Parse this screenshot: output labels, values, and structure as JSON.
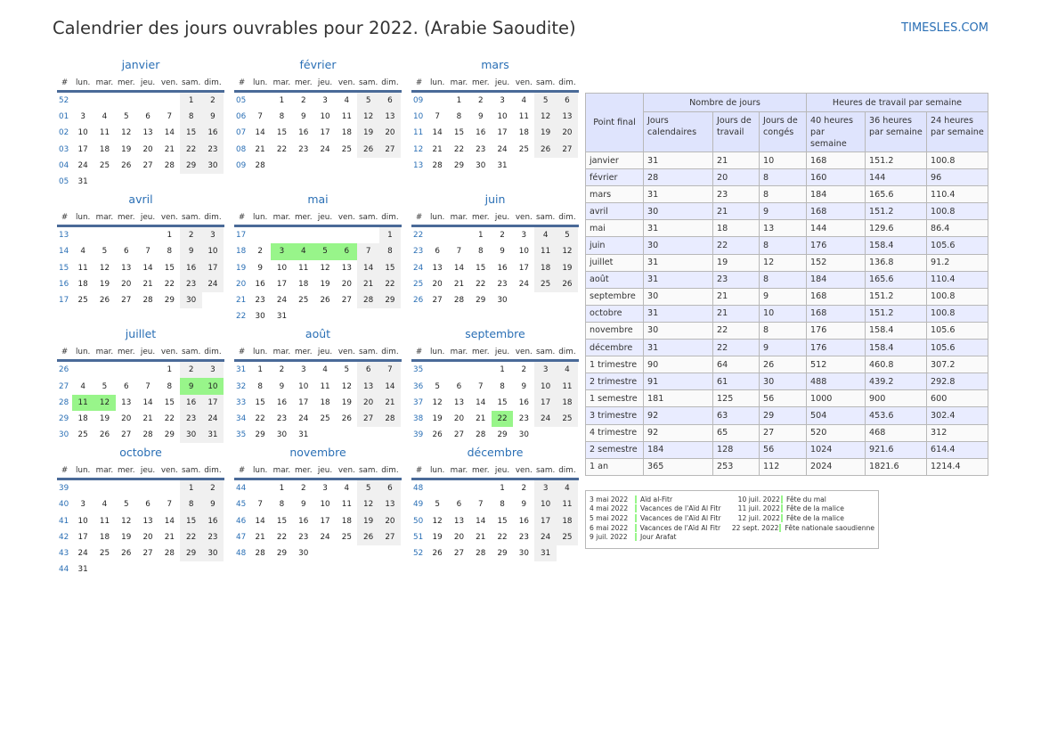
{
  "title": "Calendrier des jours ouvrables pour 2022. (Arabie Saoudite)",
  "brand": "TIMESLES.COM",
  "colors": {
    "holiday": "#98f58a",
    "weekend": "#f0f0f0",
    "accent": "#2a6fb5",
    "header_line": "#4a6a98"
  },
  "weekday_headers": [
    "#",
    "lun.",
    "mar.",
    "mer.",
    "jeu.",
    "ven.",
    "sam.",
    "dim."
  ],
  "months": [
    {
      "name": "janvier",
      "highlight": [],
      "weeks": [
        [
          "52",
          "",
          "",
          "",
          "",
          "",
          "1",
          "2"
        ],
        [
          "01",
          "3",
          "4",
          "5",
          "6",
          "7",
          "8",
          "9"
        ],
        [
          "02",
          "10",
          "11",
          "12",
          "13",
          "14",
          "15",
          "16"
        ],
        [
          "03",
          "17",
          "18",
          "19",
          "20",
          "21",
          "22",
          "23"
        ],
        [
          "04",
          "24",
          "25",
          "26",
          "27",
          "28",
          "29",
          "30"
        ],
        [
          "05",
          "31",
          "",
          "",
          "",
          "",
          "",
          ""
        ]
      ]
    },
    {
      "name": "février",
      "highlight": [],
      "weeks": [
        [
          "05",
          "",
          "1",
          "2",
          "3",
          "4",
          "5",
          "6"
        ],
        [
          "06",
          "7",
          "8",
          "9",
          "10",
          "11",
          "12",
          "13"
        ],
        [
          "07",
          "14",
          "15",
          "16",
          "17",
          "18",
          "19",
          "20"
        ],
        [
          "08",
          "21",
          "22",
          "23",
          "24",
          "25",
          "26",
          "27"
        ],
        [
          "09",
          "28",
          "",
          "",
          "",
          "",
          "",
          ""
        ]
      ]
    },
    {
      "name": "mars",
      "highlight": [],
      "weeks": [
        [
          "09",
          "",
          "1",
          "2",
          "3",
          "4",
          "5",
          "6"
        ],
        [
          "10",
          "7",
          "8",
          "9",
          "10",
          "11",
          "12",
          "13"
        ],
        [
          "11",
          "14",
          "15",
          "16",
          "17",
          "18",
          "19",
          "20"
        ],
        [
          "12",
          "21",
          "22",
          "23",
          "24",
          "25",
          "26",
          "27"
        ],
        [
          "13",
          "28",
          "29",
          "30",
          "31",
          "",
          "",
          ""
        ]
      ]
    },
    {
      "name": "avril",
      "highlight": [],
      "weeks": [
        [
          "13",
          "",
          "",
          "",
          "",
          "1",
          "2",
          "3"
        ],
        [
          "14",
          "4",
          "5",
          "6",
          "7",
          "8",
          "9",
          "10"
        ],
        [
          "15",
          "11",
          "12",
          "13",
          "14",
          "15",
          "16",
          "17"
        ],
        [
          "16",
          "18",
          "19",
          "20",
          "21",
          "22",
          "23",
          "24"
        ],
        [
          "17",
          "25",
          "26",
          "27",
          "28",
          "29",
          "30",
          ""
        ]
      ]
    },
    {
      "name": "mai",
      "highlight": [
        "3",
        "4",
        "5",
        "6"
      ],
      "weeks": [
        [
          "17",
          "",
          "",
          "",
          "",
          "",
          "",
          "1"
        ],
        [
          "18",
          "2",
          "3",
          "4",
          "5",
          "6",
          "7",
          "8"
        ],
        [
          "19",
          "9",
          "10",
          "11",
          "12",
          "13",
          "14",
          "15"
        ],
        [
          "20",
          "16",
          "17",
          "18",
          "19",
          "20",
          "21",
          "22"
        ],
        [
          "21",
          "23",
          "24",
          "25",
          "26",
          "27",
          "28",
          "29"
        ],
        [
          "22",
          "30",
          "31",
          "",
          "",
          "",
          "",
          ""
        ]
      ]
    },
    {
      "name": "juin",
      "highlight": [],
      "weeks": [
        [
          "22",
          "",
          "",
          "1",
          "2",
          "3",
          "4",
          "5"
        ],
        [
          "23",
          "6",
          "7",
          "8",
          "9",
          "10",
          "11",
          "12"
        ],
        [
          "24",
          "13",
          "14",
          "15",
          "16",
          "17",
          "18",
          "19"
        ],
        [
          "25",
          "20",
          "21",
          "22",
          "23",
          "24",
          "25",
          "26"
        ],
        [
          "26",
          "27",
          "28",
          "29",
          "30",
          "",
          "",
          ""
        ]
      ]
    },
    {
      "name": "juillet",
      "highlight": [
        "9",
        "10",
        "11",
        "12"
      ],
      "weeks": [
        [
          "26",
          "",
          "",
          "",
          "",
          "1",
          "2",
          "3"
        ],
        [
          "27",
          "4",
          "5",
          "6",
          "7",
          "8",
          "9",
          "10"
        ],
        [
          "28",
          "11",
          "12",
          "13",
          "14",
          "15",
          "16",
          "17"
        ],
        [
          "29",
          "18",
          "19",
          "20",
          "21",
          "22",
          "23",
          "24"
        ],
        [
          "30",
          "25",
          "26",
          "27",
          "28",
          "29",
          "30",
          "31"
        ]
      ]
    },
    {
      "name": "août",
      "highlight": [],
      "weeks": [
        [
          "31",
          "1",
          "2",
          "3",
          "4",
          "5",
          "6",
          "7"
        ],
        [
          "32",
          "8",
          "9",
          "10",
          "11",
          "12",
          "13",
          "14"
        ],
        [
          "33",
          "15",
          "16",
          "17",
          "18",
          "19",
          "20",
          "21"
        ],
        [
          "34",
          "22",
          "23",
          "24",
          "25",
          "26",
          "27",
          "28"
        ],
        [
          "35",
          "29",
          "30",
          "31",
          "",
          "",
          "",
          ""
        ]
      ]
    },
    {
      "name": "septembre",
      "highlight": [
        "22"
      ],
      "weeks": [
        [
          "35",
          "",
          "",
          "",
          "1",
          "2",
          "3",
          "4"
        ],
        [
          "36",
          "5",
          "6",
          "7",
          "8",
          "9",
          "10",
          "11"
        ],
        [
          "37",
          "12",
          "13",
          "14",
          "15",
          "16",
          "17",
          "18"
        ],
        [
          "38",
          "19",
          "20",
          "21",
          "22",
          "23",
          "24",
          "25"
        ],
        [
          "39",
          "26",
          "27",
          "28",
          "29",
          "30",
          "",
          ""
        ]
      ]
    },
    {
      "name": "octobre",
      "highlight": [],
      "weeks": [
        [
          "39",
          "",
          "",
          "",
          "",
          "",
          "1",
          "2"
        ],
        [
          "40",
          "3",
          "4",
          "5",
          "6",
          "7",
          "8",
          "9"
        ],
        [
          "41",
          "10",
          "11",
          "12",
          "13",
          "14",
          "15",
          "16"
        ],
        [
          "42",
          "17",
          "18",
          "19",
          "20",
          "21",
          "22",
          "23"
        ],
        [
          "43",
          "24",
          "25",
          "26",
          "27",
          "28",
          "29",
          "30"
        ],
        [
          "44",
          "31",
          "",
          "",
          "",
          "",
          "",
          ""
        ]
      ]
    },
    {
      "name": "novembre",
      "highlight": [],
      "weeks": [
        [
          "44",
          "",
          "1",
          "2",
          "3",
          "4",
          "5",
          "6"
        ],
        [
          "45",
          "7",
          "8",
          "9",
          "10",
          "11",
          "12",
          "13"
        ],
        [
          "46",
          "14",
          "15",
          "16",
          "17",
          "18",
          "19",
          "20"
        ],
        [
          "47",
          "21",
          "22",
          "23",
          "24",
          "25",
          "26",
          "27"
        ],
        [
          "48",
          "28",
          "29",
          "30",
          "",
          "",
          "",
          ""
        ]
      ]
    },
    {
      "name": "décembre",
      "highlight": [],
      "weeks": [
        [
          "48",
          "",
          "",
          "",
          "1",
          "2",
          "3",
          "4"
        ],
        [
          "49",
          "5",
          "6",
          "7",
          "8",
          "9",
          "10",
          "11"
        ],
        [
          "50",
          "12",
          "13",
          "14",
          "15",
          "16",
          "17",
          "18"
        ],
        [
          "51",
          "19",
          "20",
          "21",
          "22",
          "23",
          "24",
          "25"
        ],
        [
          "52",
          "26",
          "27",
          "28",
          "29",
          "30",
          "31",
          ""
        ]
      ]
    }
  ],
  "table": {
    "group_headers": {
      "point_final": "Point final",
      "days": "Nombre de jours",
      "hours": "Heures de travail par semaine"
    },
    "col_headers": [
      "Jours calendaires",
      "Jours de travail",
      "Jours de congés",
      "40 heures par semaine",
      "36 heures par semaine",
      "24 heures par semaine"
    ],
    "rows": [
      [
        "janvier",
        "31",
        "21",
        "10",
        "168",
        "151.2",
        "100.8"
      ],
      [
        "février",
        "28",
        "20",
        "8",
        "160",
        "144",
        "96"
      ],
      [
        "mars",
        "31",
        "23",
        "8",
        "184",
        "165.6",
        "110.4"
      ],
      [
        "avril",
        "30",
        "21",
        "9",
        "168",
        "151.2",
        "100.8"
      ],
      [
        "mai",
        "31",
        "18",
        "13",
        "144",
        "129.6",
        "86.4"
      ],
      [
        "juin",
        "30",
        "22",
        "8",
        "176",
        "158.4",
        "105.6"
      ],
      [
        "juillet",
        "31",
        "19",
        "12",
        "152",
        "136.8",
        "91.2"
      ],
      [
        "août",
        "31",
        "23",
        "8",
        "184",
        "165.6",
        "110.4"
      ],
      [
        "septembre",
        "30",
        "21",
        "9",
        "168",
        "151.2",
        "100.8"
      ],
      [
        "octobre",
        "31",
        "21",
        "10",
        "168",
        "151.2",
        "100.8"
      ],
      [
        "novembre",
        "30",
        "22",
        "8",
        "176",
        "158.4",
        "105.6"
      ],
      [
        "décembre",
        "31",
        "22",
        "9",
        "176",
        "158.4",
        "105.6"
      ],
      [
        "1 trimestre",
        "90",
        "64",
        "26",
        "512",
        "460.8",
        "307.2"
      ],
      [
        "2 trimestre",
        "91",
        "61",
        "30",
        "488",
        "439.2",
        "292.8"
      ],
      [
        "1 semestre",
        "181",
        "125",
        "56",
        "1000",
        "900",
        "600"
      ],
      [
        "3 trimestre",
        "92",
        "63",
        "29",
        "504",
        "453.6",
        "302.4"
      ],
      [
        "4 trimestre",
        "92",
        "65",
        "27",
        "520",
        "468",
        "312"
      ],
      [
        "2 semestre",
        "184",
        "128",
        "56",
        "1024",
        "921.6",
        "614.4"
      ],
      [
        "1 an",
        "365",
        "253",
        "112",
        "2024",
        "1821.6",
        "1214.4"
      ]
    ]
  },
  "holidays": [
    [
      "3 mai 2022",
      "Aïd al-Fitr",
      "10 juil. 2022",
      "Fête du mal"
    ],
    [
      "4 mai 2022",
      "Vacances de l'Aïd Al Fitr",
      "11 juil. 2022",
      "Fête de la malice"
    ],
    [
      "5 mai 2022",
      "Vacances de l'Aïd Al Fitr",
      "12 juil. 2022",
      "Fête de la malice"
    ],
    [
      "6 mai 2022",
      "Vacances de l'Aïd Al Fitr",
      "22 sept. 2022",
      "Fête nationale saoudienne"
    ],
    [
      "9 juil. 2022",
      "Jour Arafat",
      "",
      ""
    ]
  ]
}
